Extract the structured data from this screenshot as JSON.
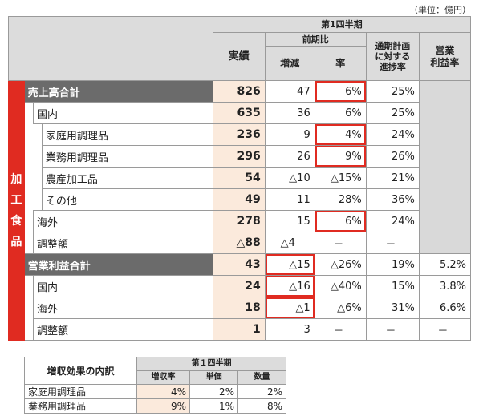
{
  "unit": "（単位：億円）",
  "header": {
    "q1": "第1四半期",
    "actual": "実績",
    "yoy": "前期比",
    "change": "増減",
    "rate": "率",
    "progress": "通期計画に対する進捗率",
    "progress_lines": [
      "通期計画",
      "に対する",
      "進捗率"
    ],
    "margin": "営業利益率",
    "margin_lines": [
      "営業",
      "利益率"
    ]
  },
  "sidebar_label": [
    "加",
    "工",
    "食",
    "品"
  ],
  "rows": [
    {
      "label": "売上高合計",
      "actual": "826",
      "change": "47",
      "rate": "6%",
      "progress": "25%",
      "margin": ""
    },
    {
      "label": "国内",
      "actual": "635",
      "change": "36",
      "rate": "6%",
      "progress": "25%",
      "margin": ""
    },
    {
      "label": "家庭用調理品",
      "actual": "236",
      "change": "9",
      "rate": "4%",
      "progress": "24%",
      "margin": ""
    },
    {
      "label": "業務用調理品",
      "actual": "296",
      "change": "26",
      "rate": "9%",
      "progress": "26%",
      "margin": ""
    },
    {
      "label": "農産加工品",
      "actual": "54",
      "change": "△10",
      "rate": "△15%",
      "progress": "21%",
      "margin": ""
    },
    {
      "label": "その他",
      "actual": "49",
      "change": "11",
      "rate": "28%",
      "progress": "36%",
      "margin": ""
    },
    {
      "label": "海外",
      "actual": "278",
      "change": "15",
      "rate": "6%",
      "progress": "24%",
      "margin": ""
    },
    {
      "label": "調整額",
      "actual": "△88",
      "change": "△4",
      "rate": "－",
      "progress": "－",
      "margin": ""
    },
    {
      "label": "営業利益合計",
      "actual": "43",
      "change": "△15",
      "rate": "△26%",
      "progress": "19%",
      "margin": "5.2%"
    },
    {
      "label": "国内",
      "actual": "24",
      "change": "△16",
      "rate": "△40%",
      "progress": "15%",
      "margin": "3.8%"
    },
    {
      "label": "海外",
      "actual": "18",
      "change": "△1",
      "rate": "△6%",
      "progress": "31%",
      "margin": "6.6%"
    },
    {
      "label": "調整額",
      "actual": "1",
      "change": "3",
      "rate": "－",
      "progress": "－",
      "margin": "－"
    }
  ],
  "sub": {
    "title": "増収効果の内訳",
    "q1": "第１四半期",
    "cols": [
      "増収率",
      "単価",
      "数量"
    ],
    "rows": [
      {
        "label": "家庭用調理品",
        "rate": "4%",
        "price": "2%",
        "volume": "2%"
      },
      {
        "label": "業務用調理品",
        "rate": "9%",
        "price": "1%",
        "volume": "8%"
      }
    ]
  },
  "colors": {
    "accent": "#e02b21",
    "header_gray": "#dcdcdc",
    "dark_row": "#6b6b6b",
    "actual_bg": "#fbeadc"
  }
}
